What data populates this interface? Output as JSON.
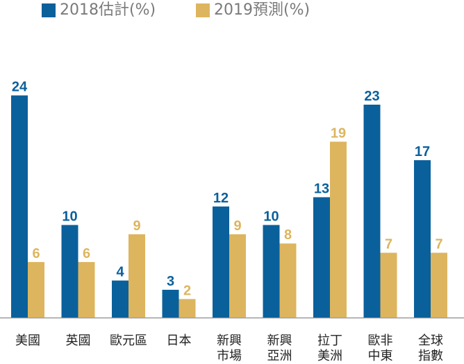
{
  "colors": {
    "series1": "#0a609b",
    "series2": "#ddb55f",
    "axis": "#9a9a9a",
    "text": "#222222",
    "legend_text": "#7a7a7a"
  },
  "legend": {
    "item1": "2018估計(%)",
    "item2": "2019預測(%)"
  },
  "chart_data": {
    "type": "bar",
    "title": "",
    "xlabel": "",
    "ylabel": "",
    "ylim": [
      0,
      25
    ],
    "grid": false,
    "legend_position": "top-left",
    "categories": [
      "美國",
      "英國",
      "歐元區",
      "日本",
      "新興市場",
      "新興亞洲",
      "拉丁美洲",
      "歐非中東",
      "全球指數"
    ],
    "category_lines": [
      [
        "美國"
      ],
      [
        "英國"
      ],
      [
        "歐元區"
      ],
      [
        "日本"
      ],
      [
        "新興",
        "市場"
      ],
      [
        "新興",
        "亞洲"
      ],
      [
        "拉丁",
        "美洲"
      ],
      [
        "歐非",
        "中東"
      ],
      [
        "全球",
        "指數"
      ]
    ],
    "series": [
      {
        "name": "2018估計(%)",
        "values": [
          24,
          10,
          4,
          3,
          12,
          10,
          13,
          23,
          17
        ]
      },
      {
        "name": "2019預測(%)",
        "values": [
          6,
          6,
          9,
          2,
          9,
          8,
          19,
          7,
          7
        ]
      }
    ]
  }
}
